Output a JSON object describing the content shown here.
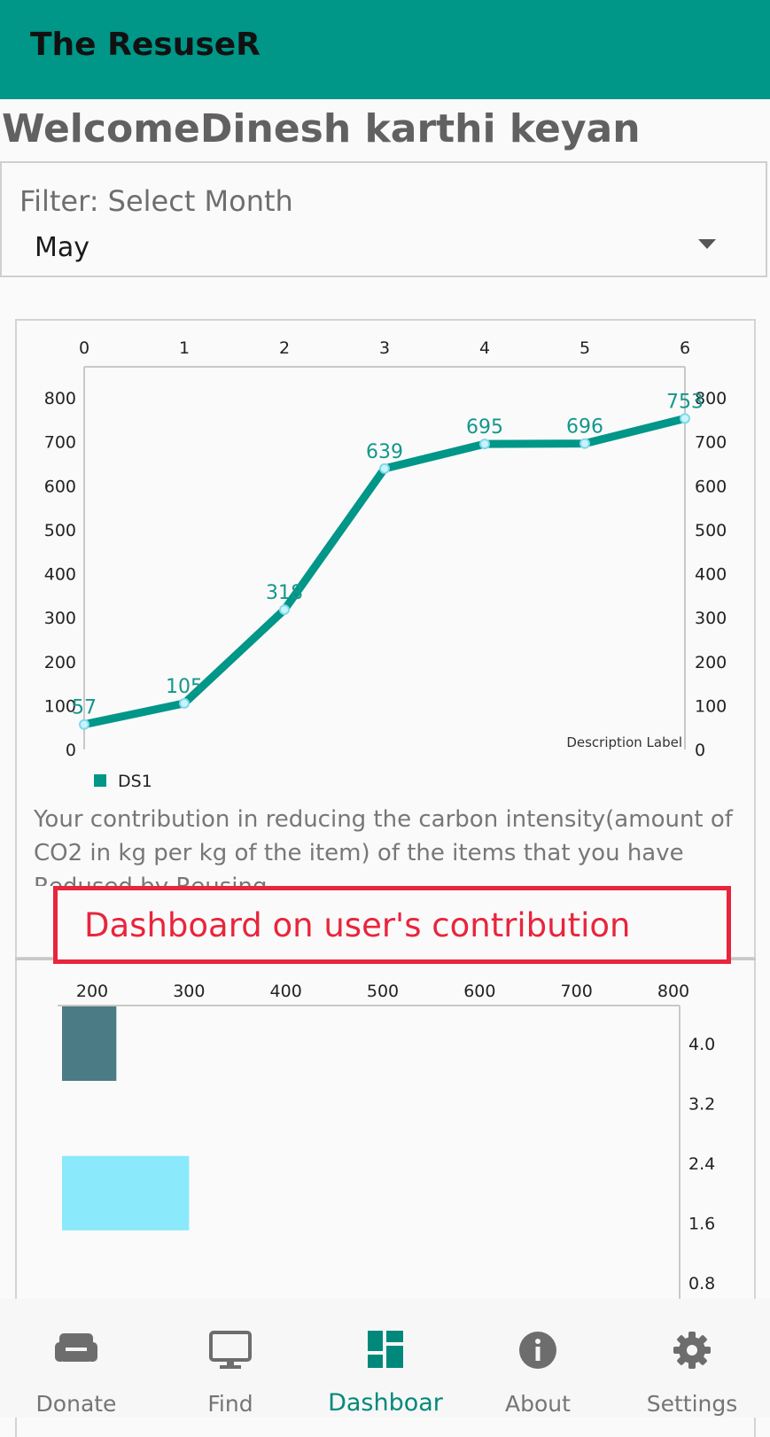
{
  "app": {
    "title": "The ResuseR"
  },
  "welcome": "WelcomeDinesh karthi keyan",
  "filter": {
    "label": "Filter: Select Month",
    "selected": "May"
  },
  "colors": {
    "primary": "#009688",
    "accent_bar_1": "#4b7b84",
    "accent_bar_2": "#8ae9fb",
    "annotation": "#e8253c"
  },
  "chart_data": [
    {
      "type": "line",
      "x": [
        0,
        1,
        2,
        3,
        4,
        5,
        6
      ],
      "series": [
        {
          "name": "DS1",
          "values": [
            57,
            105,
            318,
            639,
            695,
            696,
            753
          ]
        }
      ],
      "data_labels": [
        "57",
        "105",
        "318",
        "639",
        "695",
        "696",
        "753"
      ],
      "x_ticks": [
        "0",
        "1",
        "2",
        "3",
        "4",
        "5",
        "6"
      ],
      "y_ticks": [
        "0",
        "100",
        "200",
        "300",
        "400",
        "500",
        "600",
        "700",
        "800"
      ],
      "ylim": [
        0,
        800
      ],
      "description_label": "Description Label",
      "legend_position": "bottom-left",
      "grid": false
    },
    {
      "type": "bar",
      "orientation": "horizontal",
      "series": [
        {
          "color": "#4b7b84",
          "value": 225,
          "y": 4.0
        },
        {
          "color": "#8ae9fb",
          "value": 300,
          "y": 2.0
        }
      ],
      "x_ticks": [
        "200",
        "300",
        "400",
        "500",
        "600",
        "700",
        "800"
      ],
      "y_ticks": [
        "4.0",
        "3.2",
        "2.4",
        "1.6",
        "0.8"
      ],
      "grid": false
    }
  ],
  "description": "Your contribution in reducing the carbon intensity(amount of CO2 in kg per kg of the item) of the items that you have Redused by Reusing",
  "annotation": "Dashboard on user's contribution",
  "nav": [
    {
      "label": "Donate",
      "icon": "sofa-icon"
    },
    {
      "label": "Find",
      "icon": "monitor-icon"
    },
    {
      "label": "Dashboar",
      "icon": "dashboard-icon",
      "active": true
    },
    {
      "label": "About",
      "icon": "info-icon"
    },
    {
      "label": "Settings",
      "icon": "gear-icon"
    }
  ]
}
